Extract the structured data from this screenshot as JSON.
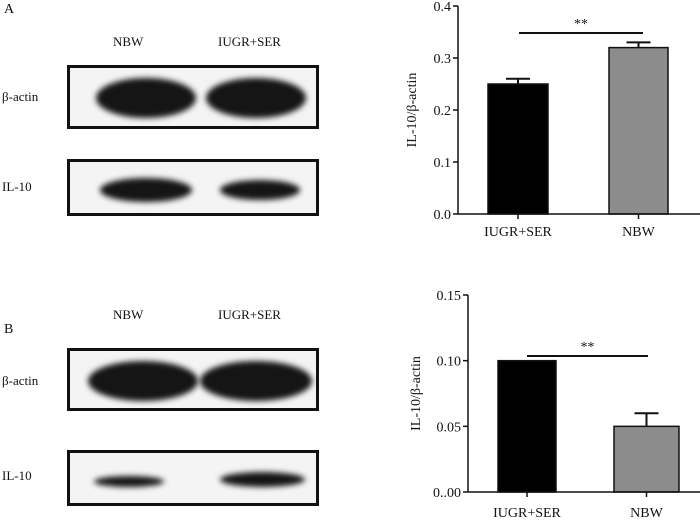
{
  "panels": [
    {
      "label": "A",
      "lanes": [
        "NBW",
        "IUGR+SER"
      ],
      "rows": [
        "β-actin",
        "IL-10"
      ]
    },
    {
      "label": "B",
      "lanes": [
        "NBW",
        "IUGR+SER"
      ],
      "rows": [
        "β-actin",
        "IL-10"
      ]
    }
  ],
  "chart_data": [
    {
      "type": "bar",
      "categories": [
        "IUGR+SER",
        "NBW"
      ],
      "values": [
        0.25,
        0.32
      ],
      "errors": [
        0.01,
        0.01
      ],
      "colors": [
        "#000000",
        "#8c8c8c"
      ],
      "ylabel": "IL-10/β-actin",
      "ylim": [
        0,
        0.4
      ],
      "yticks": [
        "0.0",
        "0.1",
        "0.2",
        "0.3",
        "0.4"
      ],
      "significance": "**"
    },
    {
      "type": "bar",
      "categories": [
        "IUGR+SER",
        "NBW"
      ],
      "values": [
        0.1,
        0.05
      ],
      "errors": [
        0.0,
        0.01
      ],
      "colors": [
        "#000000",
        "#8c8c8c"
      ],
      "ylabel": "IL-10/β-actin",
      "ylim": [
        0,
        0.15
      ],
      "yticks": [
        "0..00",
        "0.05",
        "0.10",
        "0.15"
      ],
      "significance": "**"
    }
  ]
}
